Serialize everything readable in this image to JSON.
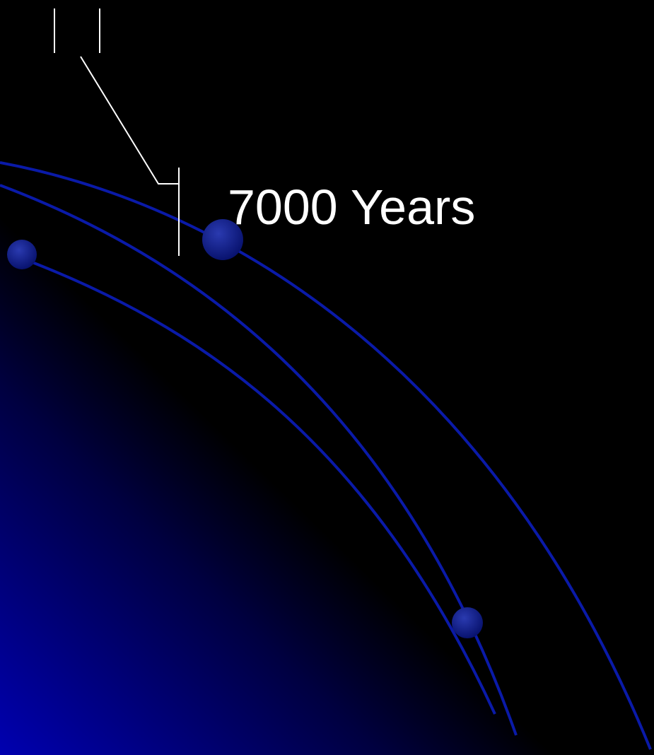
{
  "slide": {
    "text": "7000 Years"
  }
}
